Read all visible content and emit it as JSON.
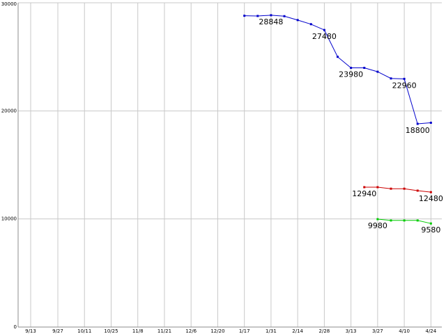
{
  "chart_data": {
    "type": "line",
    "title": "",
    "xlabel": "",
    "ylabel": "",
    "ylim": [
      0,
      30000
    ],
    "yticks": [
      "0",
      "10000",
      "20000",
      "30000"
    ],
    "xticks": [
      "9/13",
      "9/27",
      "10/11",
      "10/25",
      "11/8",
      "11/21",
      "12/6",
      "12/20",
      "1/17",
      "1/31",
      "2/14",
      "2/28",
      "3/13",
      "3/27",
      "4/10",
      "4/24"
    ],
    "grid": true,
    "legend": "none",
    "series": [
      {
        "color": "#0000cc",
        "x": [
          "1/17",
          "1/24",
          "1/31",
          "2/7",
          "2/14",
          "2/21",
          "2/28",
          "3/6",
          "3/13",
          "3/20",
          "3/27",
          "4/3",
          "4/10",
          "4/17",
          "4/24"
        ],
        "values": [
          28800,
          28780,
          28848,
          28760,
          28400,
          28020,
          27480,
          25000,
          23980,
          23980,
          23620,
          23000,
          22960,
          18800,
          18900
        ],
        "labels": [
          {
            "index": 2,
            "text": "28848"
          },
          {
            "index": 6,
            "text": "27480"
          },
          {
            "index": 8,
            "text": "23980"
          },
          {
            "index": 12,
            "text": "22960"
          },
          {
            "index": 13,
            "text": "18800"
          }
        ]
      },
      {
        "color": "#cc0000",
        "x": [
          "3/20",
          "3/27",
          "4/3",
          "4/10",
          "4/17",
          "4/24"
        ],
        "values": [
          12940,
          12940,
          12800,
          12800,
          12620,
          12480
        ],
        "labels": [
          {
            "index": 0,
            "text": "12940"
          },
          {
            "index": 5,
            "text": "12480"
          }
        ]
      },
      {
        "color": "#00cc00",
        "x": [
          "3/27",
          "4/3",
          "4/10",
          "4/17",
          "4/24"
        ],
        "values": [
          9980,
          9860,
          9860,
          9860,
          9580
        ],
        "labels": [
          {
            "index": 0,
            "text": "9980"
          },
          {
            "index": 4,
            "text": "9580"
          }
        ]
      }
    ]
  }
}
